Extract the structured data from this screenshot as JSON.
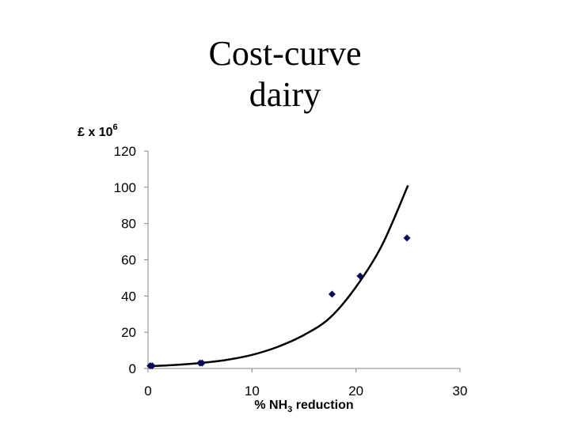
{
  "slide": {
    "title_line1": "Cost-curve",
    "title_line2": "dairy"
  },
  "chart_data": {
    "type": "scatter",
    "title": "Cost-curve dairy",
    "ylabel": {
      "base": "£ x 10",
      "sup": "6"
    },
    "xlabel": {
      "pre": "% NH",
      "sub": "3",
      "post": " reduction"
    },
    "xlim": [
      0,
      30
    ],
    "ylim": [
      0,
      120
    ],
    "xticks": [
      0,
      10,
      20,
      30
    ],
    "yticks": [
      0,
      20,
      40,
      60,
      80,
      100,
      120
    ],
    "grid": false,
    "legend": "none",
    "series": [
      {
        "kind": "points",
        "marker": "diamond",
        "color": "#0a0a5a",
        "x": [
          0.2,
          0.4,
          5.0,
          5.2,
          17.7,
          20.4,
          24.9
        ],
        "y": [
          1.5,
          1.5,
          3.0,
          3.0,
          41,
          51,
          72
        ]
      },
      {
        "kind": "trend-curve",
        "color": "#000000",
        "x": [
          0,
          2.5,
          5,
          7.5,
          10,
          12.5,
          15,
          17.5,
          20,
          22.5,
          25
        ],
        "y": [
          1.2,
          1.9,
          3,
          4.7,
          7.5,
          12,
          18.5,
          28,
          45,
          68,
          101
        ]
      }
    ]
  }
}
